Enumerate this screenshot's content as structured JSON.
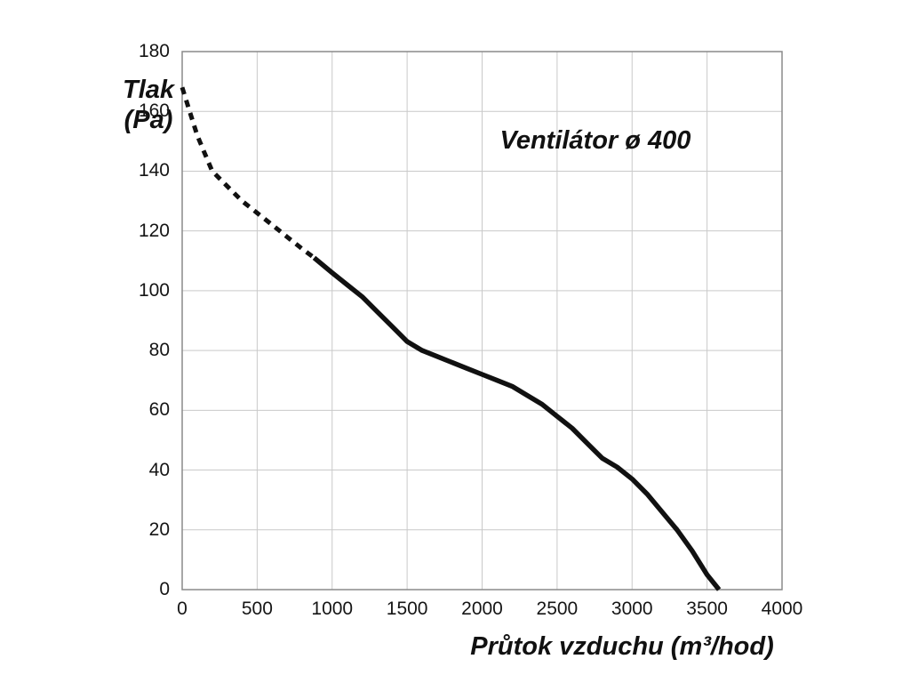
{
  "title": "Ventilátor ø 400",
  "y_axis_title": "Tlak\n(Pa)",
  "x_axis_title": "Průtok vzduchu (m³/hod)",
  "colors": {
    "curve": "#111111",
    "gridline": "#c9c9c9",
    "plot_border": "#8a8a8a",
    "text": "#151515"
  },
  "chart_data": {
    "type": "line",
    "title": "Ventilátor ø 400",
    "xlabel": "Průtok vzduchu (m³/hod)",
    "ylabel": "Tlak (Pa)",
    "xlim": [
      0,
      4000
    ],
    "ylim": [
      0,
      180
    ],
    "x_ticks": [
      0,
      500,
      1000,
      1500,
      2000,
      2500,
      3000,
      3500,
      4000
    ],
    "y_ticks": [
      0,
      20,
      40,
      60,
      80,
      100,
      120,
      140,
      160,
      180
    ],
    "grid": true,
    "legend": "none",
    "series": [
      {
        "name": "fan-curve-dashed-segment",
        "style": "dashed",
        "points": [
          [
            0,
            168
          ],
          [
            50,
            160
          ],
          [
            100,
            152
          ],
          [
            150,
            146
          ],
          [
            200,
            140
          ],
          [
            300,
            135
          ],
          [
            400,
            130
          ],
          [
            500,
            126
          ],
          [
            600,
            122
          ],
          [
            700,
            118
          ],
          [
            800,
            114
          ],
          [
            880,
            111
          ]
        ]
      },
      {
        "name": "fan-curve-solid-segment",
        "style": "solid",
        "points": [
          [
            880,
            111
          ],
          [
            1000,
            106
          ],
          [
            1100,
            102
          ],
          [
            1200,
            98
          ],
          [
            1300,
            93
          ],
          [
            1400,
            88
          ],
          [
            1500,
            83
          ],
          [
            1600,
            80
          ],
          [
            1700,
            78
          ],
          [
            1800,
            76
          ],
          [
            1900,
            74
          ],
          [
            2000,
            72
          ],
          [
            2100,
            70
          ],
          [
            2200,
            68
          ],
          [
            2300,
            65
          ],
          [
            2400,
            62
          ],
          [
            2500,
            58
          ],
          [
            2600,
            54
          ],
          [
            2700,
            49
          ],
          [
            2800,
            44
          ],
          [
            2900,
            41
          ],
          [
            3000,
            37
          ],
          [
            3100,
            32
          ],
          [
            3200,
            26
          ],
          [
            3300,
            20
          ],
          [
            3400,
            13
          ],
          [
            3500,
            5
          ],
          [
            3580,
            0
          ]
        ]
      }
    ]
  }
}
